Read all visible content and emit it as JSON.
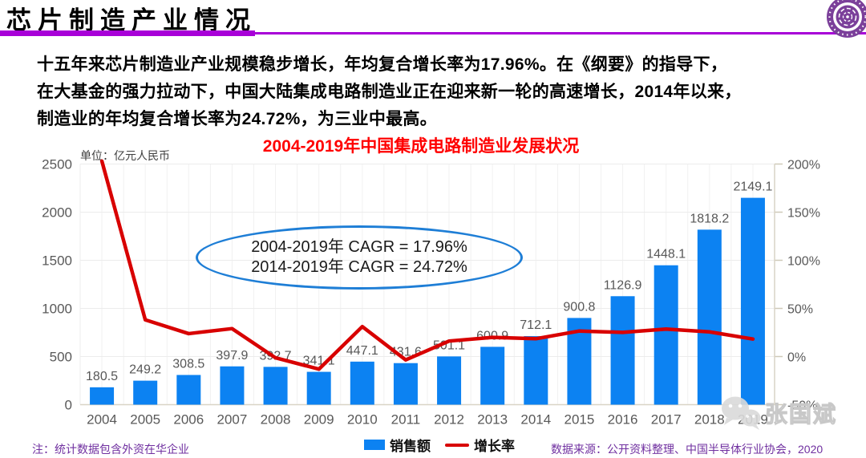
{
  "header": {
    "title": "芯片制造产业情况",
    "underline_color": "#a800d8"
  },
  "intro": {
    "lines": [
      "十五年来芯片制造业产业规模稳步增长，年均复合增长率为17.96%。在《纲要》的指导下，",
      "在大基金的强力拉动下，中国大陆集成电路制造业正在迎来新一轮的高速增长，2014年以来，",
      "制造业的年均复合增长率为24.72%，为三业中最高。"
    ]
  },
  "chart_data": {
    "type": "bar",
    "title": "2004-2019年中国集成电路制造业发展状况",
    "title_color": "#ff0000",
    "unit_label": "单位：亿元人民币",
    "categories": [
      "2004",
      "2005",
      "2006",
      "2007",
      "2008",
      "2009",
      "2010",
      "2011",
      "2012",
      "2013",
      "2014",
      "2015",
      "2016",
      "2017",
      "2018",
      "2019"
    ],
    "series": [
      {
        "name": "销售额",
        "kind": "bar",
        "axis": "left",
        "color": "#0c82f2",
        "values": [
          180.5,
          249.2,
          308.5,
          397.9,
          392.7,
          341.1,
          447.1,
          431.6,
          501.1,
          600.9,
          712.1,
          900.8,
          1126.9,
          1448.1,
          1818.2,
          2149.1
        ]
      },
      {
        "name": "增长率",
        "kind": "line",
        "axis": "right",
        "unit": "%",
        "color": "#d80000",
        "values": [
          203,
          38.1,
          23.8,
          29.0,
          -1.3,
          -13.1,
          31.1,
          -3.5,
          16.1,
          19.9,
          18.5,
          26.5,
          25.1,
          28.5,
          25.6,
          18.2
        ]
      }
    ],
    "left_axis": {
      "min": 0,
      "max": 2500,
      "tick_step": 500
    },
    "right_axis": {
      "min": -50,
      "max": 200,
      "tick_step": 50,
      "suffix": "%"
    },
    "grid": true,
    "legend_position": "bottom"
  },
  "annotation": {
    "line1": "2004-2019年 CAGR = 17.96%",
    "line2": "2014-2019年 CAGR = 24.72%",
    "border_color": "#1e7ed6"
  },
  "legend": {
    "sales": "销售额",
    "growth": "增长率",
    "sales_color": "#0c82f2",
    "growth_color": "#d80000"
  },
  "footer": {
    "note": "注：统计数据包含外资在华企业",
    "source": "数据来源：公开资料整理、中国半导体行业协会，2020",
    "color": "#7030a0"
  },
  "watermark": {
    "name": "张国斌",
    "icon": "wechat-icon"
  },
  "logo": {
    "color": "#7b3f9a"
  }
}
